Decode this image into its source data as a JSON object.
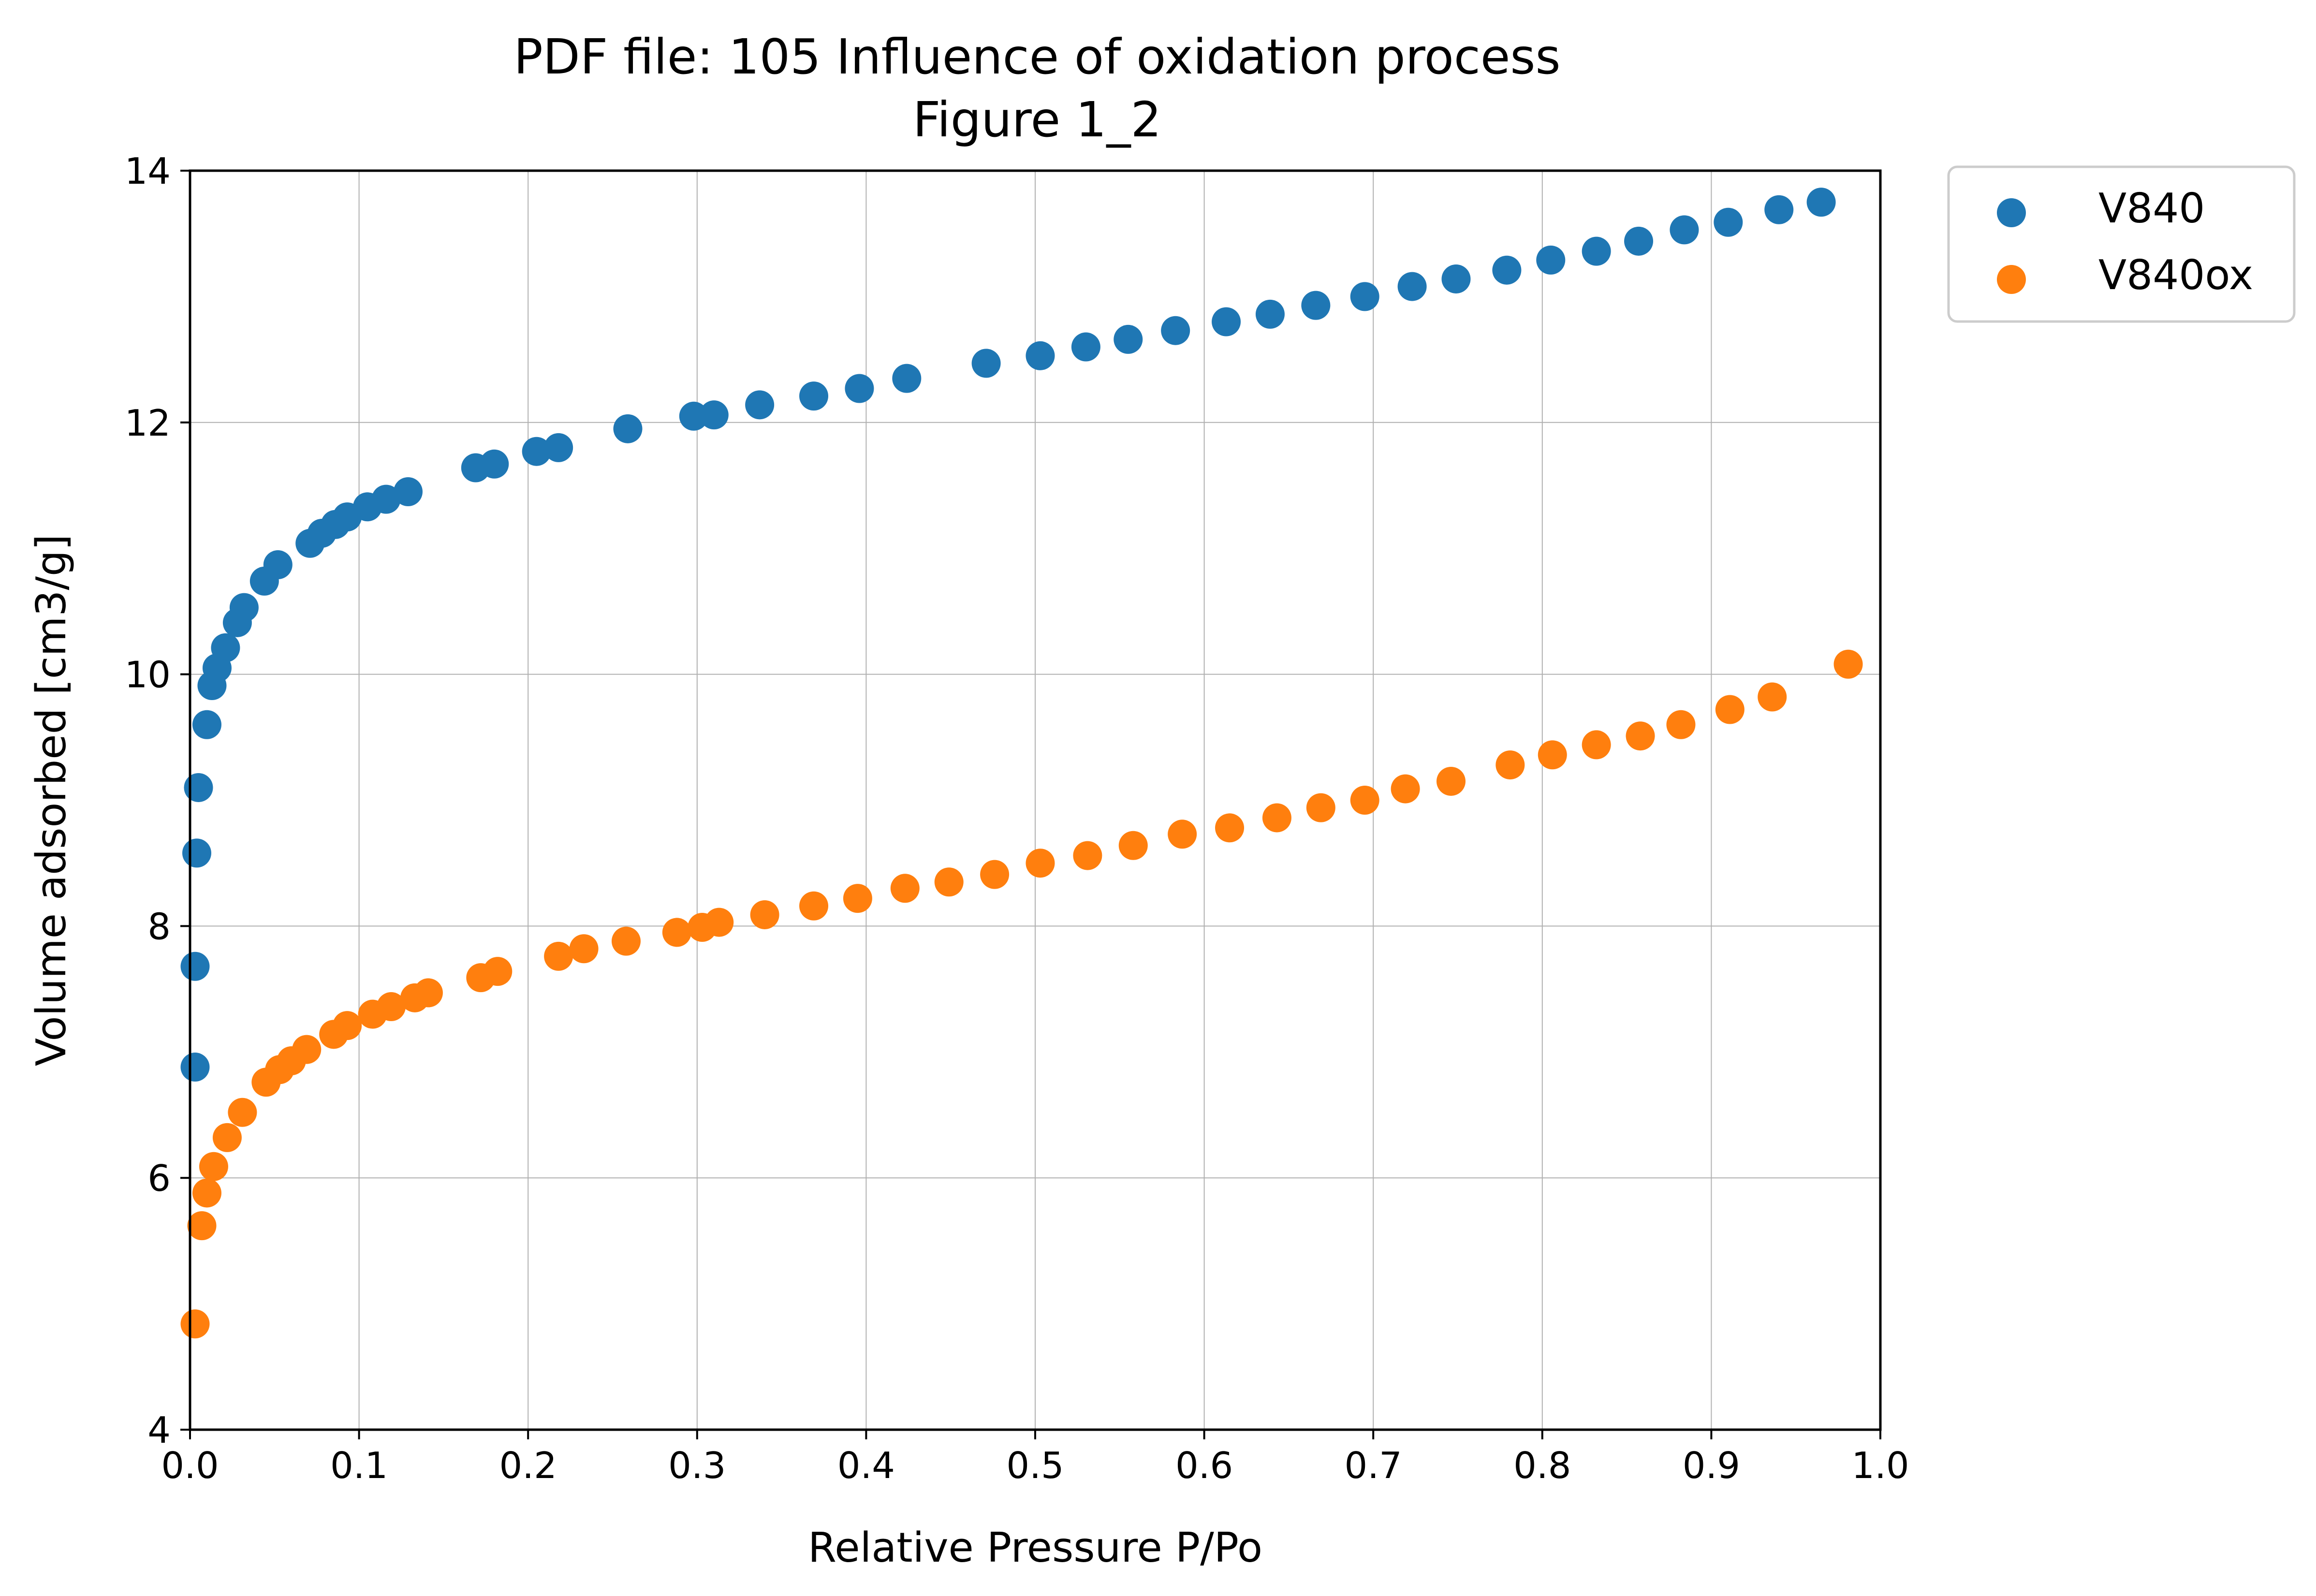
{
  "chart_data": {
    "type": "scatter",
    "title": "PDF file: 105 Influence of oxidation process",
    "subtitle": "Figure 1_2",
    "xlabel": "Relative Pressure P/Po",
    "ylabel": "Volume adsorbed [cm3/g]",
    "xlim": [
      0.0,
      1.0
    ],
    "ylim": [
      4,
      14
    ],
    "xticks": [
      "0.0",
      "0.1",
      "0.2",
      "0.3",
      "0.4",
      "0.5",
      "0.6",
      "0.7",
      "0.8",
      "0.9",
      "1.0"
    ],
    "yticks": [
      "4",
      "6",
      "8",
      "10",
      "12",
      "14"
    ],
    "grid": true,
    "legend_position": "outside-top-right",
    "series": [
      {
        "name": "V840",
        "color": "#1f77b4",
        "x": [
          0.003,
          0.003,
          0.004,
          0.005,
          0.01,
          0.013,
          0.016,
          0.021,
          0.028,
          0.032,
          0.044,
          0.052,
          0.071,
          0.078,
          0.086,
          0.093,
          0.105,
          0.116,
          0.129,
          0.169,
          0.18,
          0.205,
          0.218,
          0.259,
          0.298,
          0.31,
          0.337,
          0.369,
          0.396,
          0.424,
          0.471,
          0.503,
          0.53,
          0.555,
          0.583,
          0.613,
          0.639,
          0.666,
          0.695,
          0.723,
          0.749,
          0.779,
          0.805,
          0.832,
          0.857,
          0.884,
          0.91,
          0.94,
          0.965
        ],
        "y": [
          6.88,
          7.68,
          8.58,
          9.1,
          9.6,
          9.91,
          10.05,
          10.21,
          10.41,
          10.53,
          10.74,
          10.87,
          11.04,
          11.12,
          11.19,
          11.25,
          11.33,
          11.39,
          11.45,
          11.64,
          11.67,
          11.77,
          11.8,
          11.95,
          12.05,
          12.06,
          12.14,
          12.21,
          12.27,
          12.35,
          12.47,
          12.53,
          12.6,
          12.66,
          12.73,
          12.8,
          12.86,
          12.93,
          13.0,
          13.08,
          13.14,
          13.21,
          13.29,
          13.36,
          13.44,
          13.53,
          13.59,
          13.69,
          13.75
        ]
      },
      {
        "name": "V840ox",
        "color": "#ff7f0e",
        "x": [
          0.003,
          0.007,
          0.01,
          0.014,
          0.022,
          0.031,
          0.045,
          0.053,
          0.06,
          0.069,
          0.085,
          0.093,
          0.108,
          0.119,
          0.133,
          0.141,
          0.172,
          0.182,
          0.218,
          0.233,
          0.258,
          0.288,
          0.303,
          0.313,
          0.34,
          0.369,
          0.395,
          0.423,
          0.449,
          0.476,
          0.503,
          0.531,
          0.558,
          0.587,
          0.615,
          0.643,
          0.669,
          0.695,
          0.719,
          0.746,
          0.781,
          0.806,
          0.832,
          0.858,
          0.882,
          0.911,
          0.936,
          0.981
        ],
        "y": [
          4.84,
          5.62,
          5.88,
          6.09,
          6.32,
          6.52,
          6.76,
          6.86,
          6.93,
          7.02,
          7.14,
          7.21,
          7.3,
          7.36,
          7.43,
          7.47,
          7.59,
          7.64,
          7.76,
          7.82,
          7.88,
          7.95,
          7.99,
          8.03,
          8.09,
          8.16,
          8.22,
          8.3,
          8.35,
          8.41,
          8.5,
          8.56,
          8.64,
          8.73,
          8.78,
          8.86,
          8.94,
          9.0,
          9.09,
          9.15,
          9.28,
          9.36,
          9.44,
          9.51,
          9.6,
          9.72,
          9.82,
          10.08
        ]
      }
    ]
  }
}
